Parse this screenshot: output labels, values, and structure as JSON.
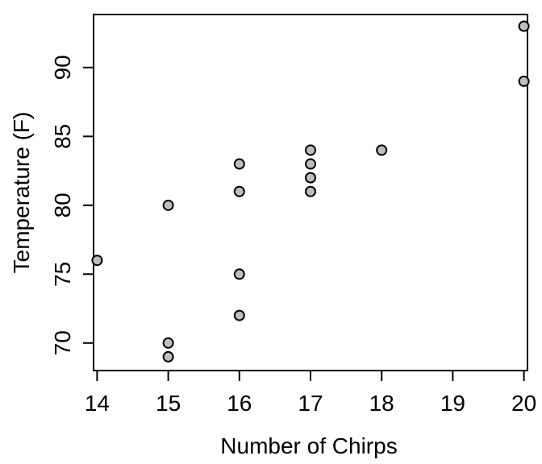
{
  "chart_data": {
    "type": "scatter",
    "title": "",
    "xlabel": "Number of Chirps",
    "ylabel": "Temperature (F)",
    "xlim": [
      13.95,
      20.05
    ],
    "ylim": [
      68.0,
      93.85
    ],
    "xticks": [
      14,
      15,
      16,
      17,
      18,
      19,
      20
    ],
    "yticks": [
      70,
      75,
      80,
      85,
      90
    ],
    "grid": false,
    "legend": "none",
    "point_fill": "#bebebe",
    "point_stroke": "#000000",
    "points": [
      {
        "x": 20,
        "y": 93
      },
      {
        "x": 20,
        "y": 89
      },
      {
        "x": 18,
        "y": 84
      },
      {
        "x": 17,
        "y": 84
      },
      {
        "x": 17,
        "y": 83
      },
      {
        "x": 17,
        "y": 82
      },
      {
        "x": 17,
        "y": 81
      },
      {
        "x": 16,
        "y": 83
      },
      {
        "x": 16,
        "y": 81
      },
      {
        "x": 16,
        "y": 75
      },
      {
        "x": 16,
        "y": 72
      },
      {
        "x": 15,
        "y": 80
      },
      {
        "x": 15,
        "y": 70
      },
      {
        "x": 15,
        "y": 69
      },
      {
        "x": 14,
        "y": 76
      }
    ]
  }
}
